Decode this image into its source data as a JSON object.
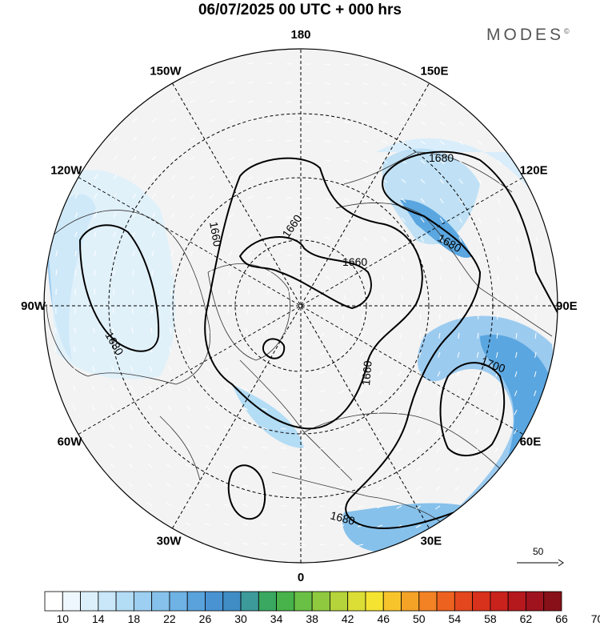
{
  "title": "06/07/2025  00 UTC  + 000 hrs",
  "logo": {
    "text": "MODES",
    "mark": "©"
  },
  "map": {
    "longitude_labels": [
      {
        "text": "180",
        "angle": 180
      },
      {
        "text": "150E",
        "angle": 150
      },
      {
        "text": "120E",
        "angle": 120
      },
      {
        "text": "90E",
        "angle": 90
      },
      {
        "text": "60E",
        "angle": 60
      },
      {
        "text": "30E",
        "angle": 30
      },
      {
        "text": "0",
        "angle": 0
      },
      {
        "text": "30W",
        "angle": -30
      },
      {
        "text": "60W",
        "angle": -60
      },
      {
        "text": "90W",
        "angle": -90
      },
      {
        "text": "120W",
        "angle": -120
      },
      {
        "text": "150W",
        "angle": -150
      }
    ],
    "contour_labels": [
      "1680",
      "1680",
      "1680",
      "1660",
      "1660",
      "1660",
      "1660",
      "1700",
      "1680"
    ],
    "wind_colors": {
      "light": "#d9edfb",
      "mid": "#9ccbf0",
      "strong": "#5aa6e0",
      "core": "#3a8fd6",
      "land": "#f2f2f2"
    }
  },
  "vector_scale": {
    "label": "50"
  },
  "colorbar": {
    "colors": [
      "#ffffff",
      "#eef7fd",
      "#dcf0fb",
      "#c9e7f8",
      "#b3dcf5",
      "#9ccff1",
      "#86c1eb",
      "#6fb2e4",
      "#5aa2dc",
      "#4a93d3",
      "#3f8dc4",
      "#3c9a9a",
      "#3aa860",
      "#47b34a",
      "#6abf45",
      "#8fc93f",
      "#b5d33a",
      "#dcde36",
      "#f5e331",
      "#f7c42c",
      "#f5a327",
      "#f28224",
      "#ee6220",
      "#e4471d",
      "#d8311c",
      "#c9221d",
      "#b5181d",
      "#9e131d",
      "#881019"
    ],
    "labels": [
      "10",
      "14",
      "18",
      "22",
      "26",
      "30",
      "34",
      "38",
      "42",
      "46",
      "50",
      "54",
      "58",
      "62",
      "66",
      "70"
    ]
  }
}
